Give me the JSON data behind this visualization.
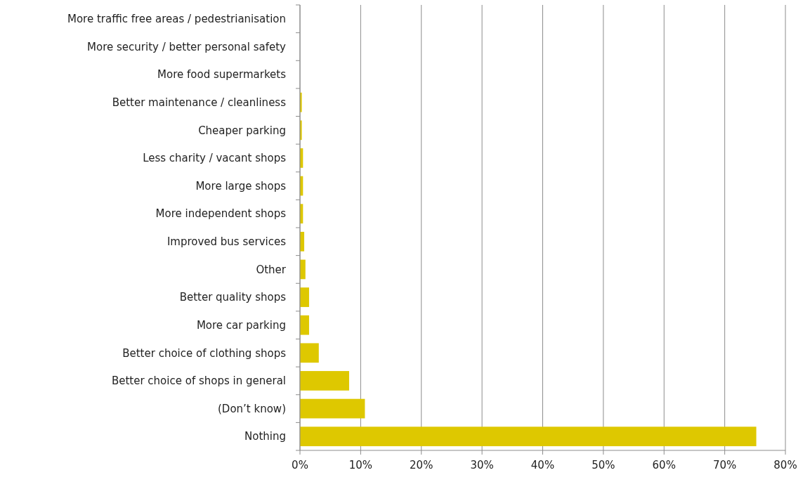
{
  "chart_data": {
    "type": "bar",
    "orientation": "horizontal",
    "categories": [
      "More traffic free areas / pedestrianisation",
      "More security / better personal safety",
      "More food supermarkets",
      "Better maintenance / cleanliness",
      "Cheaper parking",
      "Less charity / vacant shops",
      "More large shops",
      "More independent shops",
      "Improved bus services",
      "Other",
      "Better quality shops",
      "More car parking",
      "Better choice of clothing shops",
      "Better choice of shops in general",
      "(Don’t know)",
      "Nothing"
    ],
    "values": [
      0,
      0,
      0,
      0.3,
      0.3,
      0.5,
      0.5,
      0.5,
      0.7,
      0.9,
      1.5,
      1.5,
      3.1,
      8.1,
      10.7,
      75.2
    ],
    "color": "#dec800",
    "xlim": [
      0,
      80
    ],
    "xticks": [
      {
        "value": 0,
        "label": "0%"
      },
      {
        "value": 10,
        "label": "10%"
      },
      {
        "value": 20,
        "label": "20%"
      },
      {
        "value": 30,
        "label": "30%"
      },
      {
        "value": 40,
        "label": "40%"
      },
      {
        "value": 50,
        "label": "50%"
      },
      {
        "value": 60,
        "label": "60%"
      },
      {
        "value": 70,
        "label": "70%"
      },
      {
        "value": 80,
        "label": "80%"
      }
    ],
    "grid": "x"
  }
}
